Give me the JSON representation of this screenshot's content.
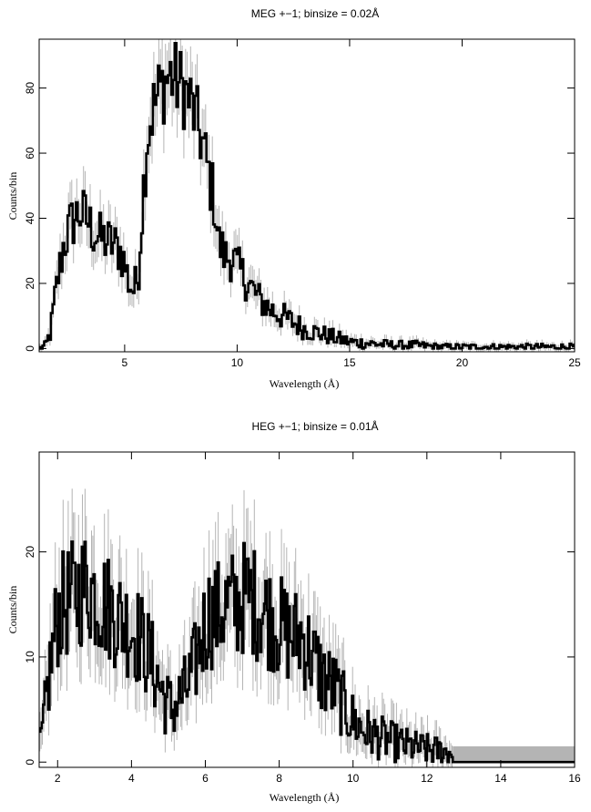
{
  "chart_data": [
    {
      "type": "line",
      "title": "MEG +−1; binsize = 0.02Å",
      "xlabel": "Wavelength (Å)",
      "ylabel": "Counts/bin",
      "xlim": [
        1.2,
        25
      ],
      "ylim": [
        -1,
        95
      ],
      "xticks": [
        5,
        10,
        15,
        20,
        25
      ],
      "yticks": [
        0,
        20,
        40,
        60,
        80
      ],
      "binsize": 0.02,
      "error_bars": true,
      "series": [
        {
          "style": "step",
          "color": "#000000",
          "error_color": "#b4b4b4",
          "x": [
            1.2,
            1.5,
            1.7,
            2.0,
            2.3,
            2.6,
            3.0,
            3.3,
            3.6,
            3.9,
            4.2,
            4.5,
            4.8,
            5.0,
            5.2,
            5.4,
            5.6,
            5.8,
            6.0,
            6.2,
            6.5,
            6.8,
            7.0,
            7.3,
            7.6,
            7.9,
            8.1,
            8.4,
            8.7,
            9.0,
            9.2,
            9.5,
            9.8,
            10.0,
            10.5,
            11.0,
            11.5,
            12.0,
            12.5,
            13.0,
            13.5,
            14.0,
            14.5,
            15.0,
            16.0,
            17.0,
            18.0,
            19.0,
            20.0,
            21.0,
            22.0,
            23.0,
            24.0,
            25.0
          ],
          "y": [
            0,
            1,
            5,
            20,
            32,
            38,
            42,
            40,
            36,
            34,
            33,
            32,
            30,
            26,
            20,
            18,
            22,
            45,
            65,
            72,
            78,
            82,
            84,
            82,
            80,
            76,
            72,
            65,
            55,
            45,
            32,
            28,
            28,
            25,
            20,
            15,
            12,
            10,
            8,
            6,
            5,
            4,
            3,
            2,
            1.5,
            1,
            1,
            0.5,
            0.5,
            0.5,
            0.5,
            0.5,
            0.5,
            0.5
          ]
        }
      ]
    },
    {
      "type": "line",
      "title": "HEG +−1; binsize = 0.01Å",
      "xlabel": "Wavelength (Å)",
      "ylabel": "Counts/bin",
      "xlim": [
        1.5,
        16
      ],
      "ylim": [
        -0.5,
        29.5
      ],
      "xticks": [
        2,
        4,
        6,
        8,
        10,
        12,
        14,
        16
      ],
      "yticks": [
        0,
        10,
        20
      ],
      "binsize": 0.01,
      "error_bars": true,
      "series": [
        {
          "style": "step",
          "color": "#000000",
          "error_color": "#b4b4b4",
          "x": [
            1.5,
            1.6,
            1.7,
            1.8,
            2.0,
            2.2,
            2.5,
            2.8,
            3.0,
            3.3,
            3.6,
            3.9,
            4.2,
            4.5,
            4.7,
            4.9,
            5.1,
            5.3,
            5.5,
            5.7,
            5.9,
            6.1,
            6.3,
            6.6,
            6.9,
            7.1,
            7.4,
            7.7,
            8.0,
            8.3,
            8.6,
            8.9,
            9.2,
            9.5,
            9.8,
            10.0,
            10.3,
            10.6,
            11.0,
            11.5,
            12.0,
            12.5,
            12.7
          ],
          "y": [
            1,
            3,
            6,
            9,
            14,
            15,
            16,
            17,
            16,
            15,
            14,
            13,
            12,
            10,
            8,
            6,
            5,
            6,
            7,
            9,
            12,
            14,
            14,
            15,
            15,
            16,
            15,
            14,
            13,
            12,
            12,
            10,
            8,
            7,
            5,
            4,
            3,
            2.5,
            2,
            1.5,
            1.2,
            1,
            0.8
          ]
        }
      ],
      "annotations": [
        "grey band beyond 12.7 Å, counts 0 with error band up to ~1.5"
      ]
    }
  ]
}
